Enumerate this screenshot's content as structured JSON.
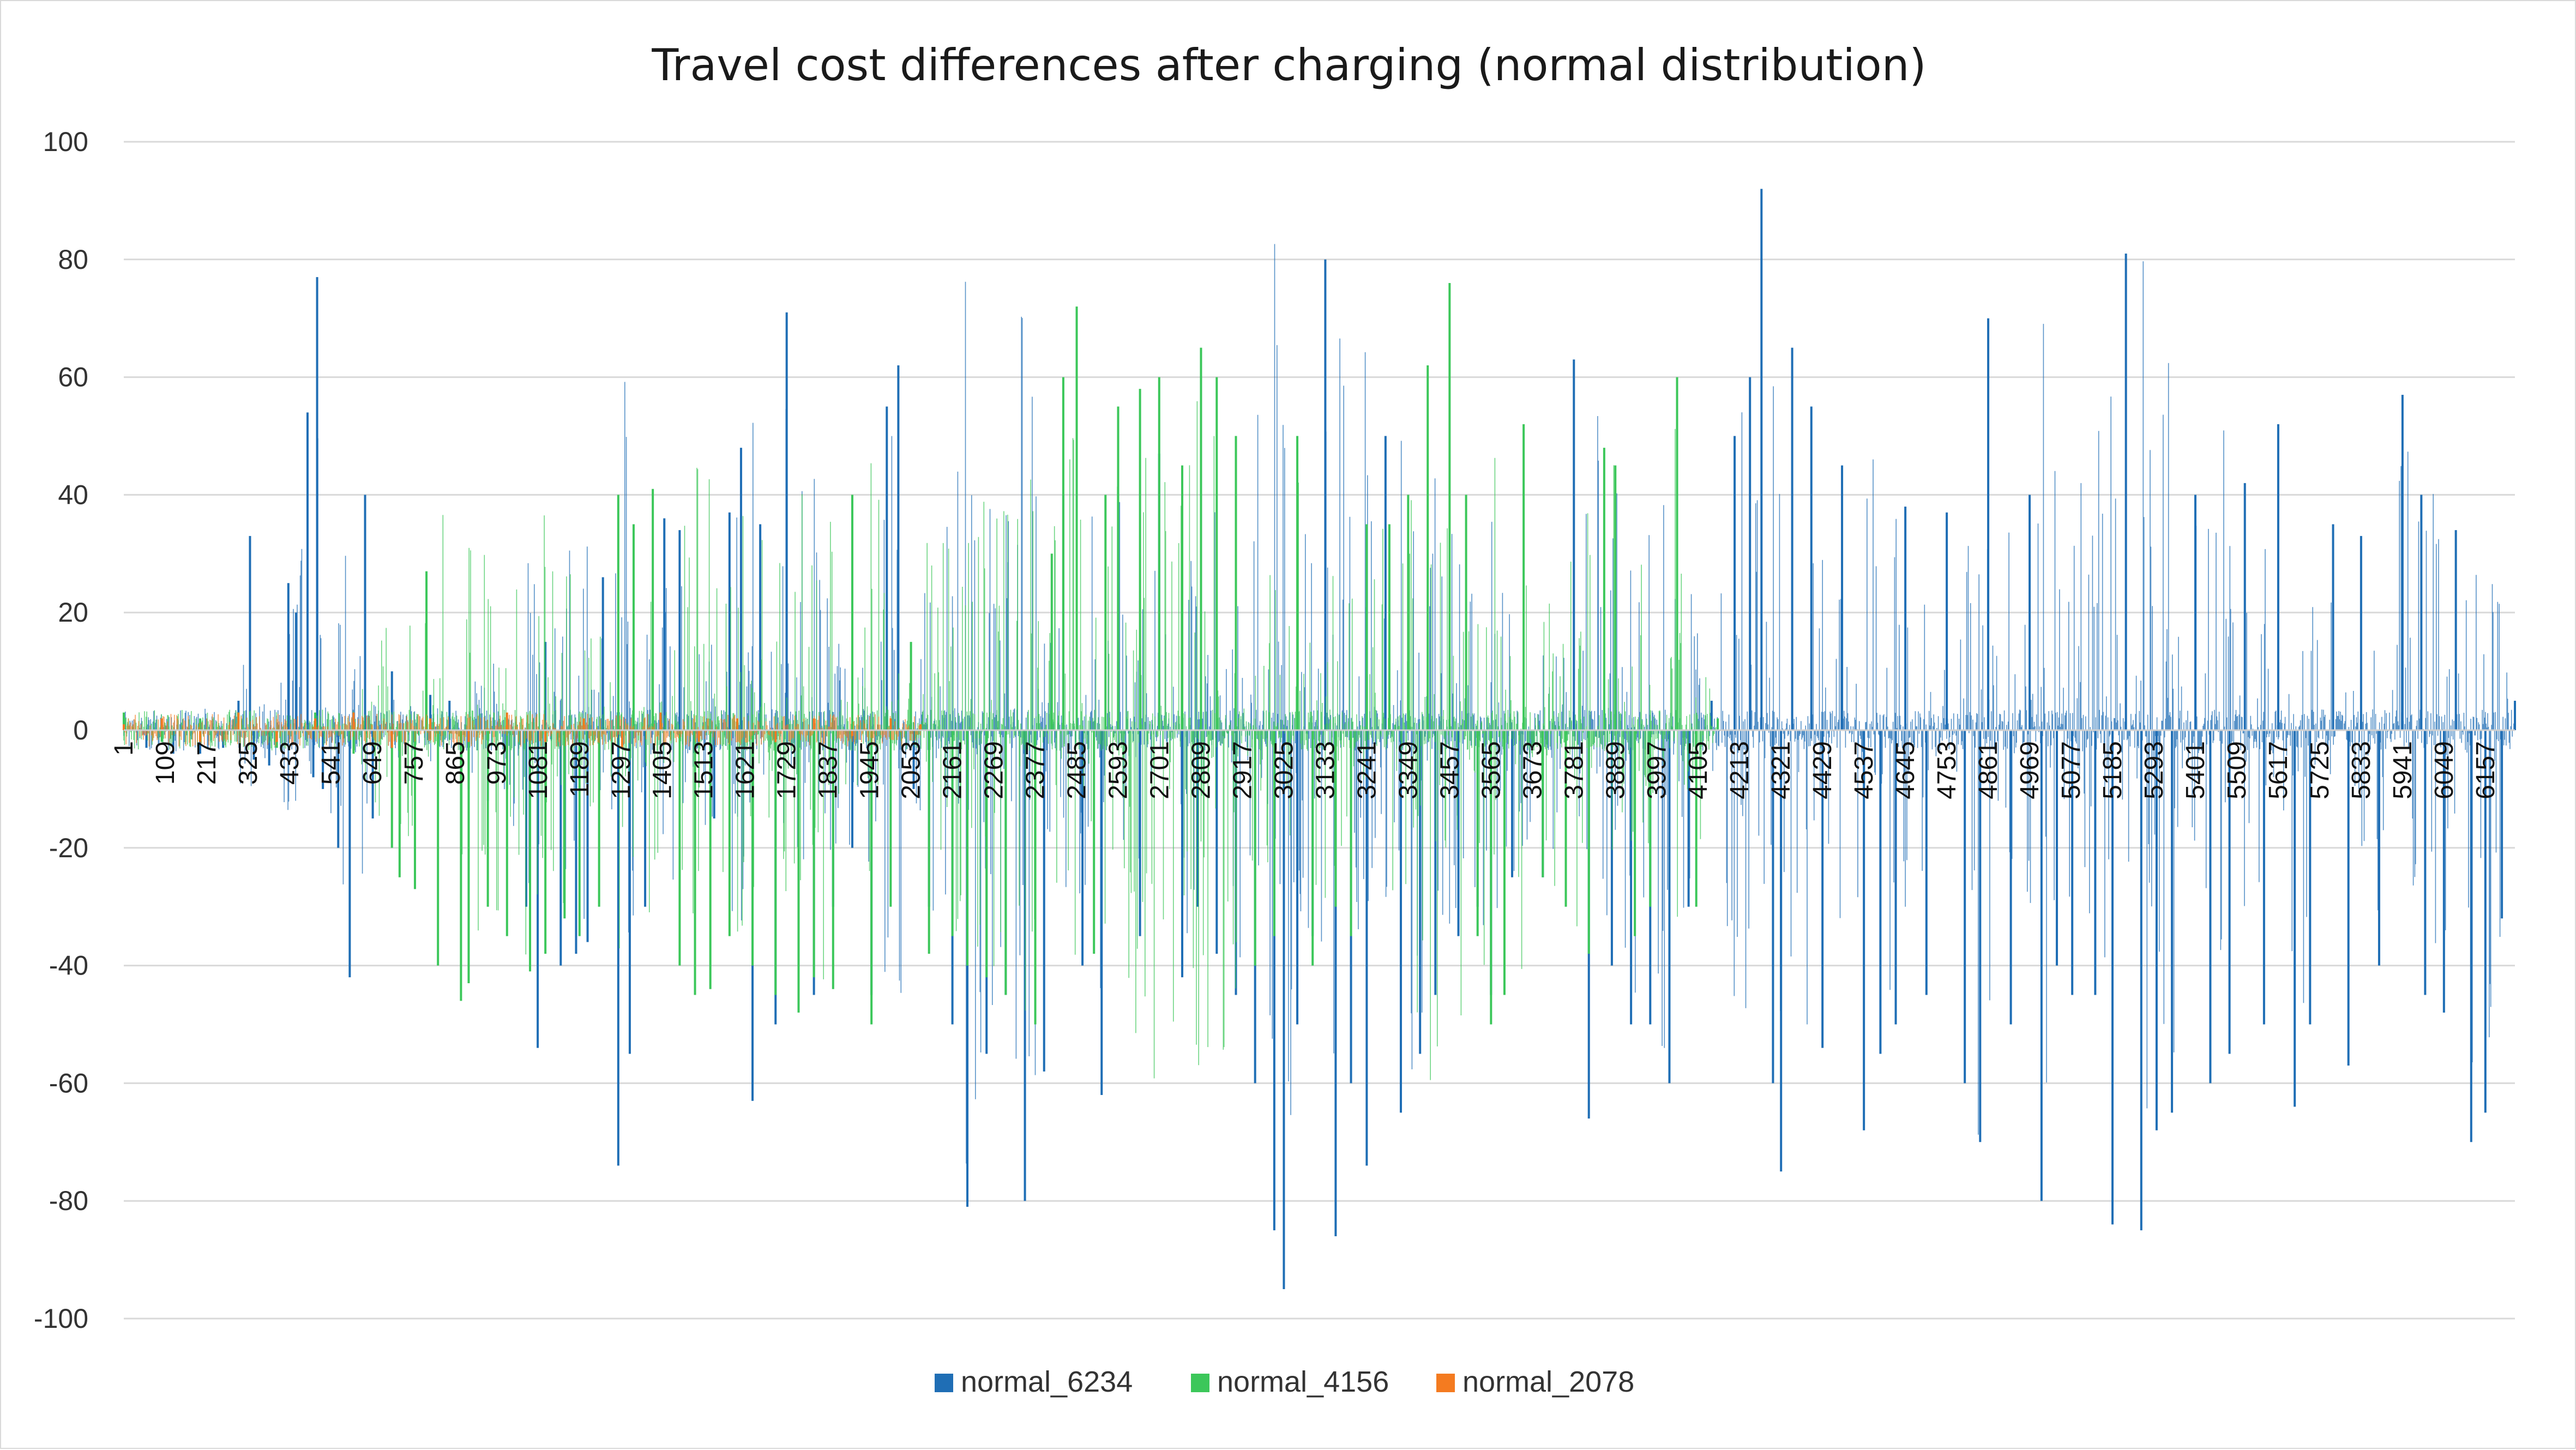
{
  "chart_data": {
    "type": "bar",
    "title": "Travel cost differences after charging (normal distribution)",
    "xlabel": "",
    "ylabel": "",
    "ylim": [
      -100,
      100
    ],
    "y_ticks": [
      100,
      80,
      60,
      40,
      20,
      0,
      -20,
      -40,
      -60,
      -80,
      -100
    ],
    "x_range": [
      1,
      6234
    ],
    "x_tick_labels": [
      "1",
      "109",
      "217",
      "325",
      "433",
      "541",
      "649",
      "757",
      "865",
      "973",
      "1081",
      "1189",
      "1297",
      "1405",
      "1513",
      "1621",
      "1729",
      "1837",
      "1945",
      "2053",
      "2161",
      "2269",
      "2377",
      "2485",
      "2593",
      "2701",
      "2809",
      "2917",
      "3025",
      "3133",
      "3241",
      "3349",
      "3457",
      "3565",
      "3673",
      "3781",
      "3889",
      "3997",
      "4105",
      "4213",
      "4321",
      "4429",
      "4537",
      "4645",
      "4753",
      "4861",
      "4969",
      "5077",
      "5185",
      "5293",
      "5401",
      "5509",
      "5617",
      "5725",
      "5833",
      "5941",
      "6049",
      "6157"
    ],
    "grid": true,
    "legend_position": "bottom",
    "series": [
      {
        "name": "normal_6234",
        "color": "#1f6eb5",
        "n": 6234,
        "samples": [
          [
            1,
            2
          ],
          [
            60,
            -3
          ],
          [
            130,
            -4
          ],
          [
            200,
            -4
          ],
          [
            260,
            -3
          ],
          [
            300,
            5
          ],
          [
            330,
            33
          ],
          [
            340,
            -5
          ],
          [
            380,
            -6
          ],
          [
            430,
            25
          ],
          [
            450,
            20
          ],
          [
            480,
            54
          ],
          [
            495,
            -8
          ],
          [
            505,
            77
          ],
          [
            520,
            -10
          ],
          [
            560,
            -20
          ],
          [
            590,
            -42
          ],
          [
            630,
            40
          ],
          [
            650,
            -15
          ],
          [
            700,
            10
          ],
          [
            760,
            -8
          ],
          [
            800,
            6
          ],
          [
            850,
            5
          ],
          [
            900,
            -10
          ],
          [
            950,
            -12
          ],
          [
            1000,
            -10
          ],
          [
            1050,
            -30
          ],
          [
            1080,
            -54
          ],
          [
            1100,
            15
          ],
          [
            1140,
            -40
          ],
          [
            1180,
            -38
          ],
          [
            1210,
            -36
          ],
          [
            1250,
            26
          ],
          [
            1290,
            -74
          ],
          [
            1320,
            -55
          ],
          [
            1360,
            -30
          ],
          [
            1410,
            36
          ],
          [
            1450,
            34
          ],
          [
            1490,
            -20
          ],
          [
            1540,
            -15
          ],
          [
            1580,
            37
          ],
          [
            1610,
            48
          ],
          [
            1640,
            -63
          ],
          [
            1660,
            35
          ],
          [
            1700,
            -50
          ],
          [
            1729,
            71
          ],
          [
            1760,
            -40
          ],
          [
            1800,
            -45
          ],
          [
            1850,
            -30
          ],
          [
            1900,
            -20
          ],
          [
            1950,
            -45
          ],
          [
            1990,
            55
          ],
          [
            2020,
            62
          ],
          [
            2060,
            -10
          ],
          [
            2100,
            -30
          ],
          [
            2161,
            -50
          ],
          [
            2200,
            -81
          ],
          [
            2250,
            -55
          ],
          [
            2300,
            -45
          ],
          [
            2350,
            -80
          ],
          [
            2400,
            -58
          ],
          [
            2450,
            40
          ],
          [
            2500,
            -40
          ],
          [
            2550,
            -62
          ],
          [
            2593,
            50
          ],
          [
            2650,
            -35
          ],
          [
            2700,
            47
          ],
          [
            2760,
            -42
          ],
          [
            2800,
            -30
          ],
          [
            2850,
            -38
          ],
          [
            2900,
            -45
          ],
          [
            2950,
            -60
          ],
          [
            3000,
            -85
          ],
          [
            3025,
            -95
          ],
          [
            3060,
            -50
          ],
          [
            3100,
            -35
          ],
          [
            3133,
            80
          ],
          [
            3160,
            -86
          ],
          [
            3200,
            -60
          ],
          [
            3241,
            -74
          ],
          [
            3290,
            50
          ],
          [
            3330,
            -65
          ],
          [
            3380,
            -55
          ],
          [
            3420,
            -45
          ],
          [
            3480,
            -35
          ],
          [
            3530,
            -30
          ],
          [
            3565,
            -45
          ],
          [
            3620,
            -25
          ],
          [
            3700,
            -25
          ],
          [
            3760,
            -20
          ],
          [
            3781,
            63
          ],
          [
            3820,
            -66
          ],
          [
            3880,
            -40
          ],
          [
            3930,
            -50
          ],
          [
            3980,
            -50
          ],
          [
            4030,
            -60
          ],
          [
            4080,
            -30
          ],
          [
            4140,
            5
          ],
          [
            4200,
            50
          ],
          [
            4240,
            60
          ],
          [
            4270,
            92
          ],
          [
            4300,
            -60
          ],
          [
            4321,
            -75
          ],
          [
            4350,
            65
          ],
          [
            4400,
            55
          ],
          [
            4429,
            -54
          ],
          [
            4480,
            45
          ],
          [
            4537,
            -68
          ],
          [
            4580,
            -55
          ],
          [
            4620,
            -50
          ],
          [
            4645,
            38
          ],
          [
            4700,
            -45
          ],
          [
            4753,
            37
          ],
          [
            4800,
            -60
          ],
          [
            4840,
            -70
          ],
          [
            4861,
            70
          ],
          [
            4920,
            -50
          ],
          [
            4969,
            40
          ],
          [
            5000,
            -80
          ],
          [
            5040,
            -40
          ],
          [
            5080,
            -45
          ],
          [
            5140,
            -45
          ],
          [
            5185,
            -84
          ],
          [
            5220,
            81
          ],
          [
            5260,
            -85
          ],
          [
            5300,
            -68
          ],
          [
            5340,
            -65
          ],
          [
            5401,
            40
          ],
          [
            5440,
            -60
          ],
          [
            5490,
            -55
          ],
          [
            5530,
            42
          ],
          [
            5580,
            -50
          ],
          [
            5617,
            52
          ],
          [
            5660,
            -64
          ],
          [
            5700,
            -50
          ],
          [
            5760,
            35
          ],
          [
            5800,
            -57
          ],
          [
            5833,
            33
          ],
          [
            5880,
            -40
          ],
          [
            5941,
            57
          ],
          [
            5990,
            40
          ],
          [
            6000,
            -45
          ],
          [
            6049,
            -48
          ],
          [
            6080,
            34
          ],
          [
            6120,
            -70
          ],
          [
            6157,
            -65
          ],
          [
            6200,
            -32
          ],
          [
            6234,
            5
          ]
        ]
      },
      {
        "name": "normal_4156",
        "color": "#3cc75a",
        "n": 4156,
        "samples": [
          [
            1,
            3
          ],
          [
            100,
            -2
          ],
          [
            200,
            2
          ],
          [
            300,
            3
          ],
          [
            400,
            -3
          ],
          [
            500,
            3
          ],
          [
            600,
            -4
          ],
          [
            700,
            -20
          ],
          [
            720,
            -25
          ],
          [
            760,
            -27
          ],
          [
            790,
            27
          ],
          [
            820,
            -40
          ],
          [
            880,
            -46
          ],
          [
            900,
            -43
          ],
          [
            950,
            -30
          ],
          [
            1000,
            -35
          ],
          [
            1060,
            -41
          ],
          [
            1100,
            -38
          ],
          [
            1150,
            -32
          ],
          [
            1189,
            -35
          ],
          [
            1240,
            -30
          ],
          [
            1290,
            40
          ],
          [
            1330,
            35
          ],
          [
            1380,
            41
          ],
          [
            1450,
            -40
          ],
          [
            1490,
            -45
          ],
          [
            1530,
            -44
          ],
          [
            1580,
            -35
          ],
          [
            1640,
            -40
          ],
          [
            1700,
            -45
          ],
          [
            1760,
            -48
          ],
          [
            1800,
            -42
          ],
          [
            1850,
            -44
          ],
          [
            1900,
            40
          ],
          [
            1950,
            -50
          ],
          [
            2000,
            -30
          ],
          [
            2053,
            15
          ],
          [
            2100,
            -38
          ],
          [
            2161,
            -35
          ],
          [
            2200,
            -40
          ],
          [
            2250,
            -42
          ],
          [
            2300,
            -45
          ],
          [
            2377,
            -50
          ],
          [
            2420,
            30
          ],
          [
            2450,
            60
          ],
          [
            2485,
            72
          ],
          [
            2530,
            -38
          ],
          [
            2560,
            40
          ],
          [
            2593,
            55
          ],
          [
            2650,
            58
          ],
          [
            2700,
            60
          ],
          [
            2760,
            45
          ],
          [
            2809,
            65
          ],
          [
            2850,
            60
          ],
          [
            2900,
            50
          ],
          [
            2950,
            -40
          ],
          [
            3000,
            -35
          ],
          [
            3060,
            50
          ],
          [
            3100,
            -40
          ],
          [
            3160,
            -30
          ],
          [
            3200,
            -35
          ],
          [
            3241,
            35
          ],
          [
            3300,
            35
          ],
          [
            3349,
            40
          ],
          [
            3400,
            62
          ],
          [
            3457,
            76
          ],
          [
            3500,
            40
          ],
          [
            3530,
            -35
          ],
          [
            3565,
            -50
          ],
          [
            3600,
            -45
          ],
          [
            3650,
            52
          ],
          [
            3700,
            -25
          ],
          [
            3760,
            -30
          ],
          [
            3820,
            -38
          ],
          [
            3860,
            48
          ],
          [
            3889,
            45
          ],
          [
            3940,
            -35
          ],
          [
            3980,
            -30
          ],
          [
            4050,
            60
          ],
          [
            4100,
            -30
          ],
          [
            4156,
            2
          ]
        ]
      },
      {
        "name": "normal_2078",
        "color": "#f47b20",
        "n": 2078,
        "samples": [
          [
            1,
            1
          ],
          [
            100,
            2
          ],
          [
            200,
            -2
          ],
          [
            300,
            3
          ],
          [
            400,
            -2
          ],
          [
            500,
            2
          ],
          [
            600,
            3
          ],
          [
            700,
            -3
          ],
          [
            800,
            2
          ],
          [
            900,
            -2
          ],
          [
            1000,
            3
          ],
          [
            1100,
            -2
          ],
          [
            1200,
            2
          ],
          [
            1300,
            -3
          ],
          [
            1400,
            3
          ],
          [
            1500,
            -2
          ],
          [
            1600,
            2
          ],
          [
            1700,
            -2
          ],
          [
            1800,
            2
          ],
          [
            1900,
            -1
          ],
          [
            2000,
            2
          ],
          [
            2078,
            1
          ]
        ]
      }
    ]
  }
}
